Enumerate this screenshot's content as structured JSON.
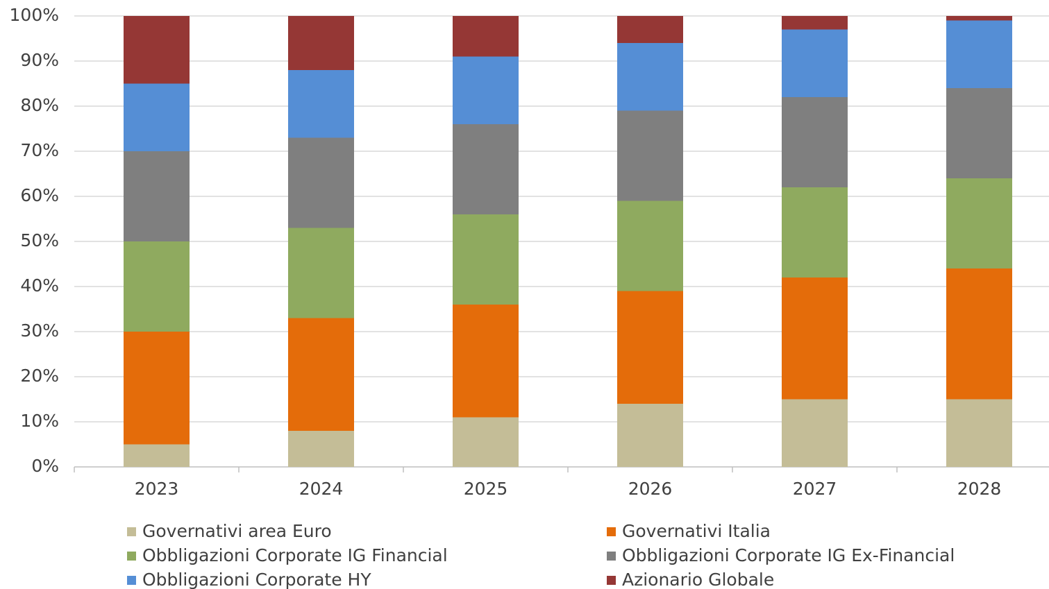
{
  "chart_data": {
    "type": "stacked_bar",
    "categories": [
      "2023",
      "2024",
      "2025",
      "2026",
      "2027",
      "2028"
    ],
    "series": [
      {
        "name": "Governativi area Euro",
        "color": "#c4bd97",
        "values": [
          5,
          8,
          11,
          14,
          15,
          15
        ]
      },
      {
        "name": "Governativi Italia",
        "color": "#e46c0a",
        "values": [
          25,
          25,
          25,
          25,
          27,
          29
        ]
      },
      {
        "name": "Obbligazioni Corporate IG Financial",
        "color": "#8faa5f",
        "values": [
          20,
          20,
          20,
          20,
          20,
          20
        ]
      },
      {
        "name": "Obbligazioni Corporate IG Ex-Financial",
        "color": "#7f7f7f",
        "values": [
          20,
          20,
          20,
          20,
          20,
          20
        ]
      },
      {
        "name": "Obbligazioni Corporate HY",
        "color": "#558ed5",
        "values": [
          15,
          15,
          15,
          15,
          15,
          15
        ]
      },
      {
        "name": "Azionario Globale",
        "color": "#953735",
        "values": [
          15,
          12,
          9,
          6,
          3,
          1
        ]
      }
    ],
    "ylim": [
      0,
      100
    ],
    "yticks": [
      {
        "value": 0,
        "label": "0%"
      },
      {
        "value": 10,
        "label": "10%"
      },
      {
        "value": 20,
        "label": "20%"
      },
      {
        "value": 30,
        "label": "30%"
      },
      {
        "value": 40,
        "label": "40%"
      },
      {
        "value": 50,
        "label": "50%"
      },
      {
        "value": 60,
        "label": "60%"
      },
      {
        "value": 70,
        "label": "70%"
      },
      {
        "value": 80,
        "label": "80%"
      },
      {
        "value": 90,
        "label": "90%"
      },
      {
        "value": 100,
        "label": "100%"
      }
    ],
    "grid": true
  }
}
